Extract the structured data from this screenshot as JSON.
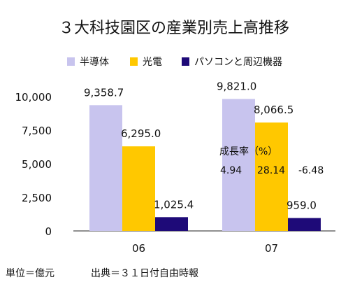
{
  "chart_data": {
    "type": "bar",
    "title": "３大科技園区の産業別売上高推移",
    "categories": [
      "06",
      "07"
    ],
    "series": [
      {
        "name": "半導体",
        "color": "#c8c4ee",
        "values": [
          9358.7,
          9821.0
        ],
        "labels": [
          "9,358.7",
          "9,821.0"
        ]
      },
      {
        "name": "光電",
        "color": "#ffc800",
        "values": [
          6295.0,
          8066.5
        ],
        "labels": [
          "6,295.0",
          "8,066.5"
        ]
      },
      {
        "name": "パソコンと周辺機器",
        "color": "#1e0a78",
        "values": [
          1025.4,
          959.0
        ],
        "labels": [
          "1,025.4",
          "959.0"
        ]
      }
    ],
    "ylim": [
      0,
      10000
    ],
    "yticks": [
      0,
      2500,
      5000,
      7500,
      10000
    ],
    "ytick_labels": [
      "0",
      "2,500",
      "5,000",
      "7,500",
      "10,000"
    ],
    "xlabel": "",
    "ylabel": "",
    "grid": false,
    "legend_position": "top-right",
    "annotation": {
      "title": "成長率（%）",
      "values": [
        "4.94",
        "28.14",
        "-6.48"
      ]
    }
  },
  "footer": {
    "unit": "単位＝億元",
    "source": "出典＝３１日付自由時報"
  }
}
